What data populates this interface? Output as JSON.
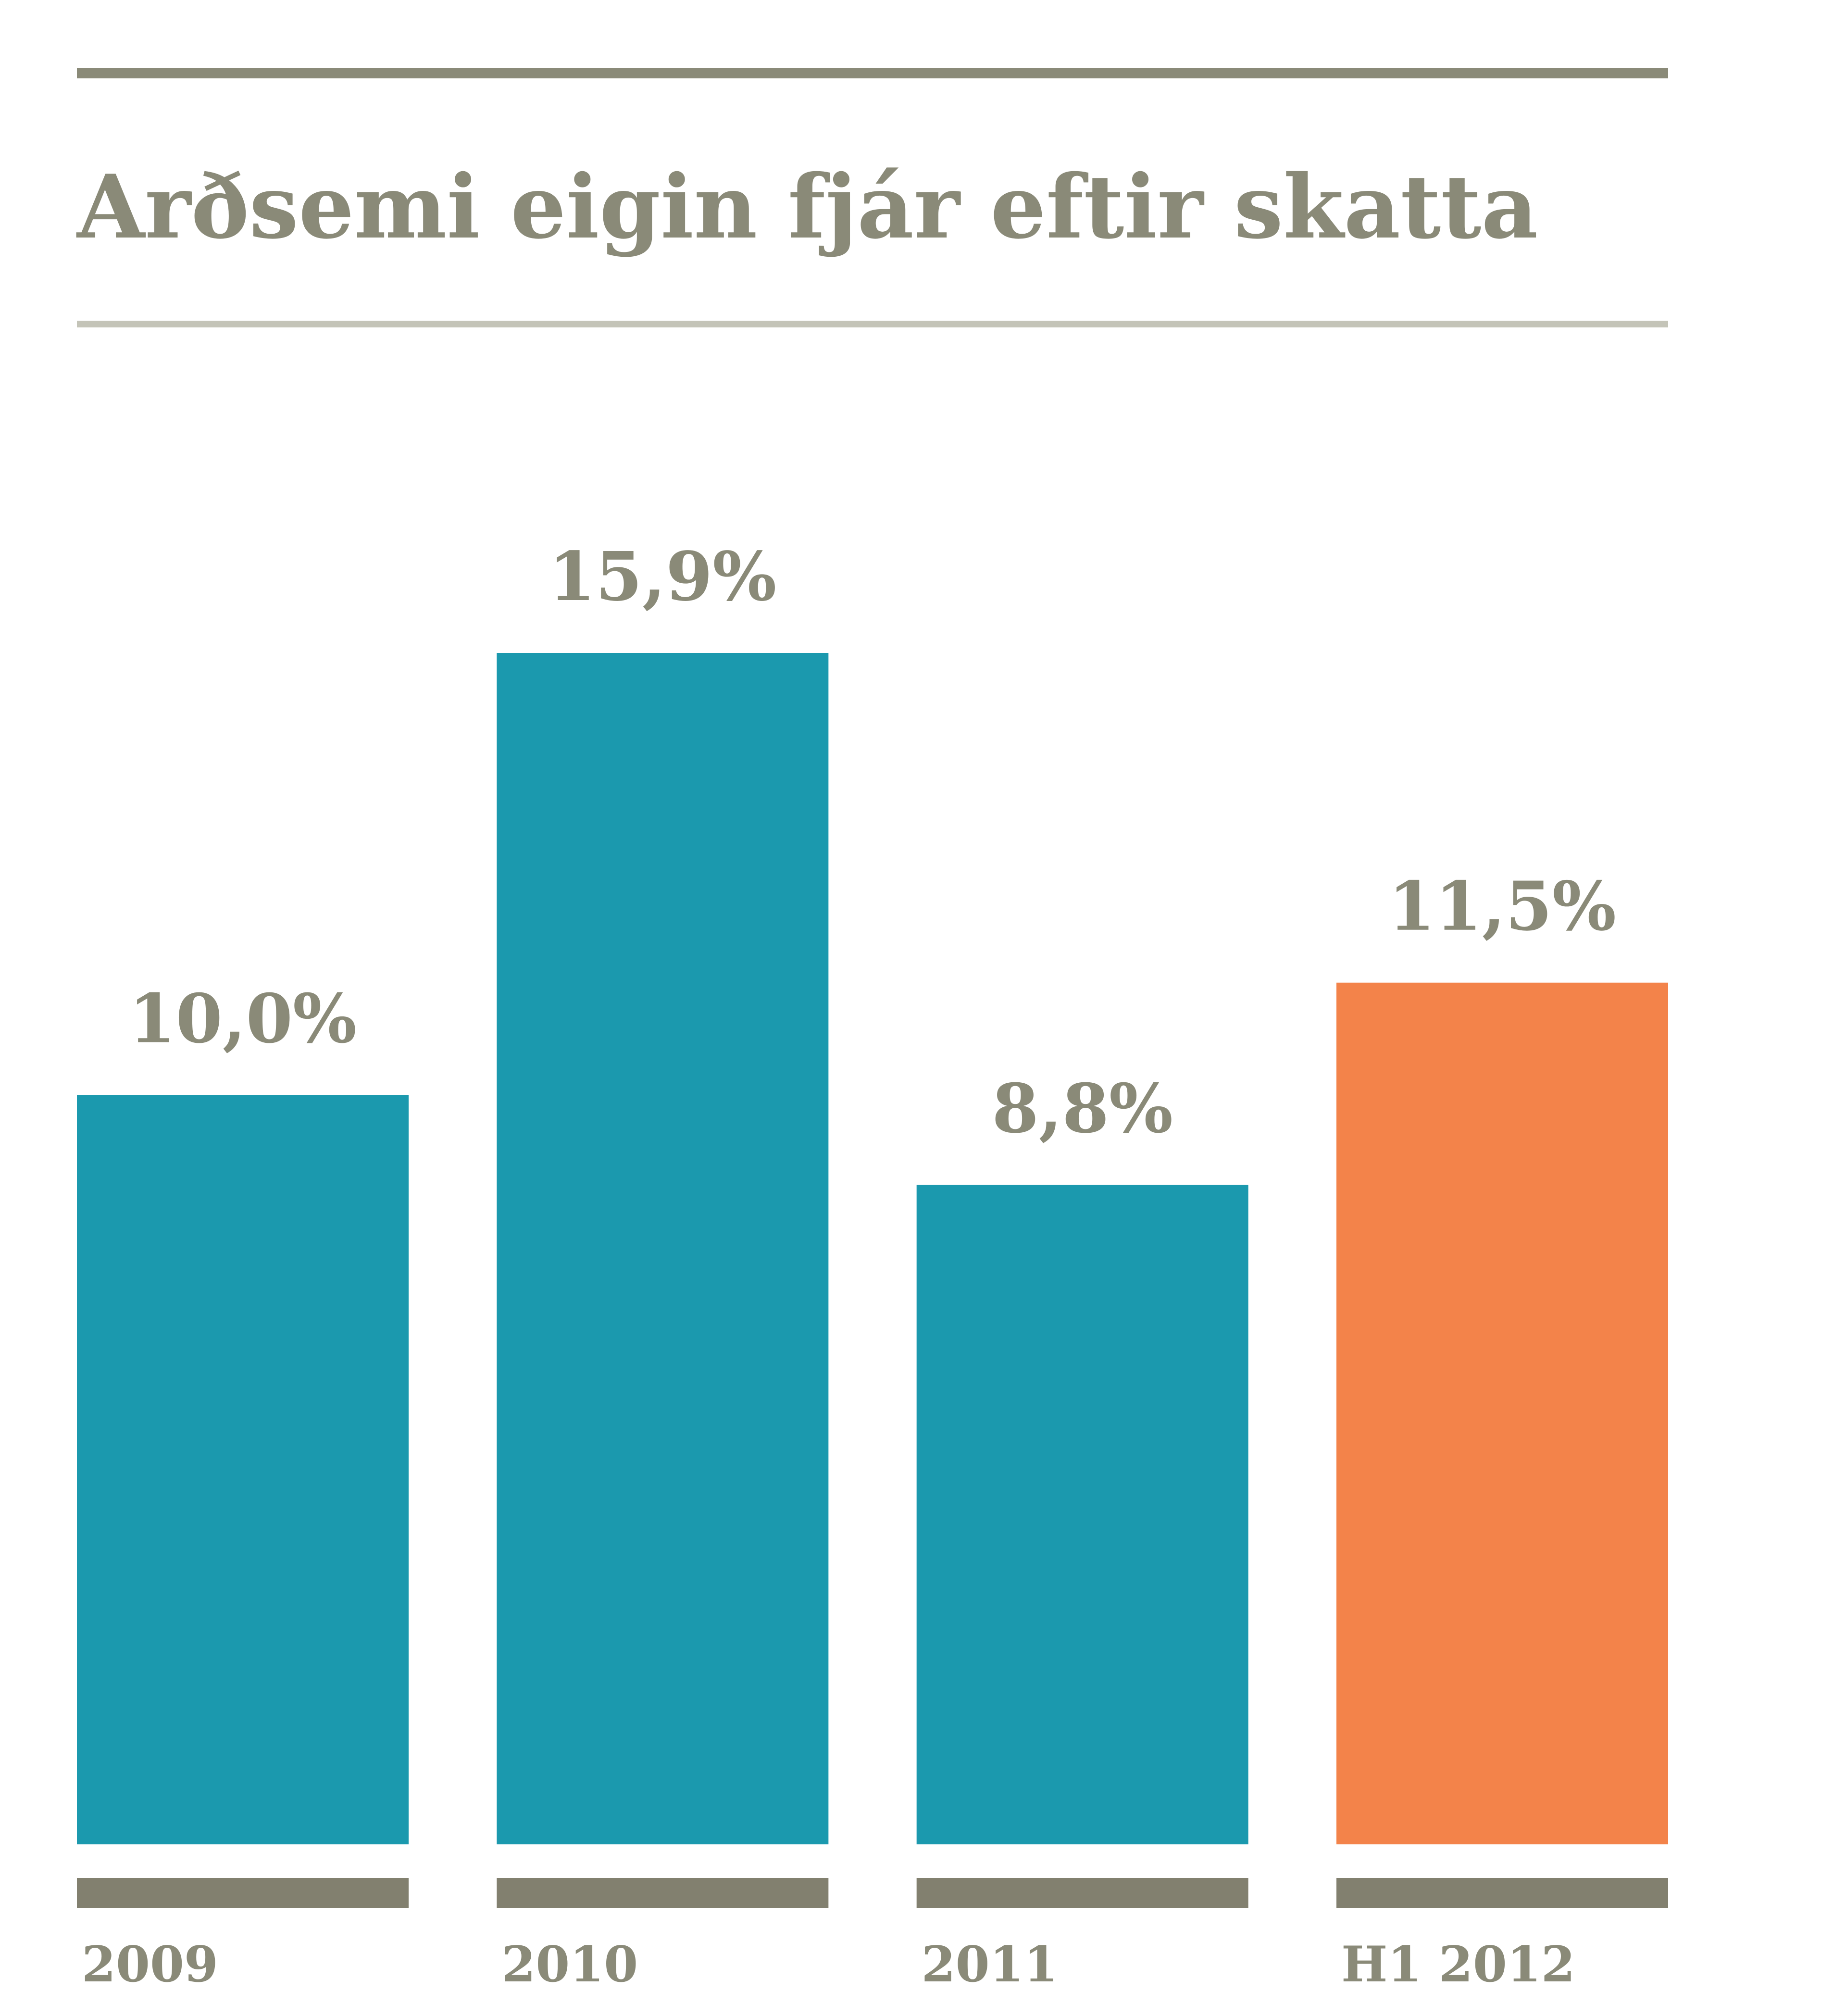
{
  "colors": {
    "text": "#8a8a78",
    "rule": "#8a8a78",
    "rule_light": "#c4c4b8",
    "axis_block": "#82806f",
    "bar": "#1b99ae",
    "bar_highlight": "#f3834a"
  },
  "chart_data": {
    "type": "bar",
    "title": "Arðsemi eigin fjár eftir skatta",
    "xlabel": "",
    "ylabel": "",
    "grid": false,
    "legend": "none",
    "ylim": [
      0,
      15.9
    ],
    "categories": [
      "2009",
      "2010",
      "2011",
      "H1 2012"
    ],
    "values": [
      10.0,
      15.9,
      8.8,
      11.5
    ],
    "data_labels": [
      "10,0%",
      "15,9%",
      "8,8%",
      "11,5%"
    ],
    "highlight_index": 3
  }
}
